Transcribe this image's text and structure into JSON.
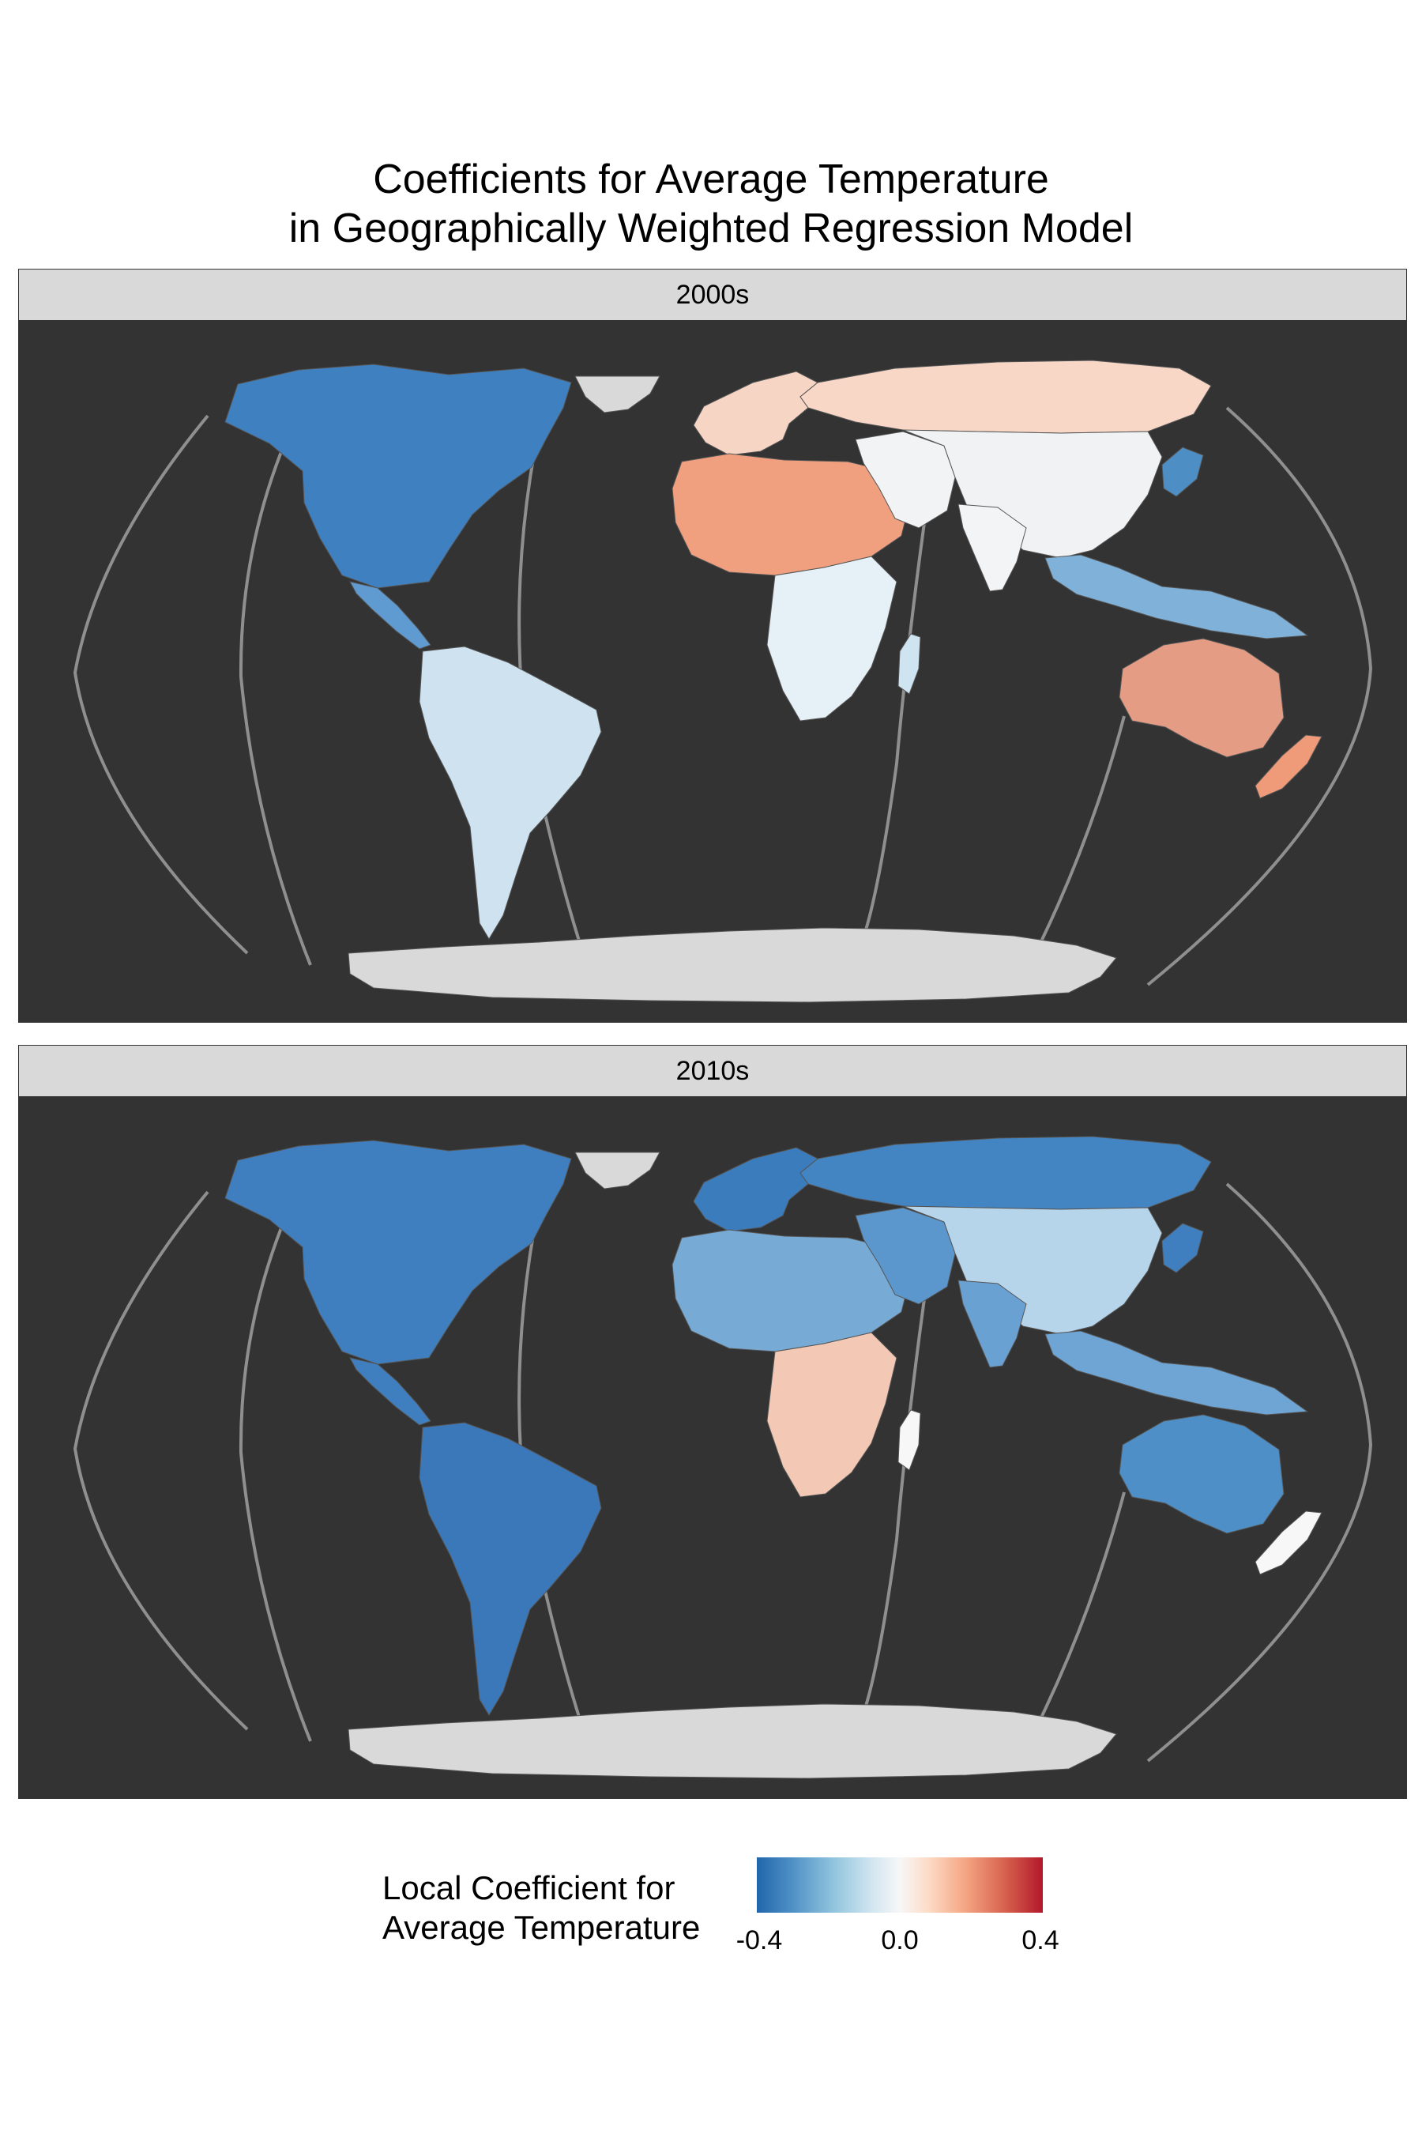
{
  "title": {
    "line1": "Coefficients for Average Temperature",
    "line2": "in Geographically Weighted Regression Model"
  },
  "panels": [
    {
      "label": "2000s",
      "regions": {
        "north_america": "#3f81c0",
        "greenland": "#d9d9d9",
        "central_america": "#5f9bd0",
        "south_america": "#cfe2f0",
        "europe": "#f7d5c5",
        "north_africa": "#f1a07f",
        "southern_africa": "#e6f0f7",
        "russia": "#f8d7c7",
        "middle_east": "#f1f3f5",
        "asia": "#f1f2f4",
        "india": "#f3f4f6",
        "se_asia": "#7fb1d9",
        "japan": "#4d8fc5",
        "australia": "#e59c84",
        "new_zealand": "#ef9a78",
        "madagascar": "#cfe4f1",
        "antarctica": "#d9d9d9"
      }
    },
    {
      "label": "2010s",
      "regions": {
        "north_america": "#3f7fbf",
        "greenland": "#d9d9d9",
        "central_america": "#3f7fbf",
        "south_america": "#3a78ba",
        "europe": "#3b7cbd",
        "north_africa": "#77aad5",
        "southern_africa": "#f3c9b5",
        "russia": "#4385c3",
        "middle_east": "#5b97cd",
        "asia": "#b7d5ea",
        "india": "#6aa1d3",
        "se_asia": "#6ea5d4",
        "japan": "#3f7fbf",
        "australia": "#4d8fc6",
        "new_zealand": "#f7f7f7",
        "madagascar": "#f7f7f7",
        "antarctica": "#d9d9d9"
      }
    }
  ],
  "legend": {
    "title_line1": "Local Coefficient for",
    "title_line2": "Average Temperature",
    "ticks": [
      "-0.4",
      "0.0",
      "0.4"
    ],
    "range": [
      -0.4,
      0.4
    ],
    "colors": {
      "low": "#2166ac",
      "mid": "#f7f7f7",
      "high": "#b2182b"
    }
  }
}
